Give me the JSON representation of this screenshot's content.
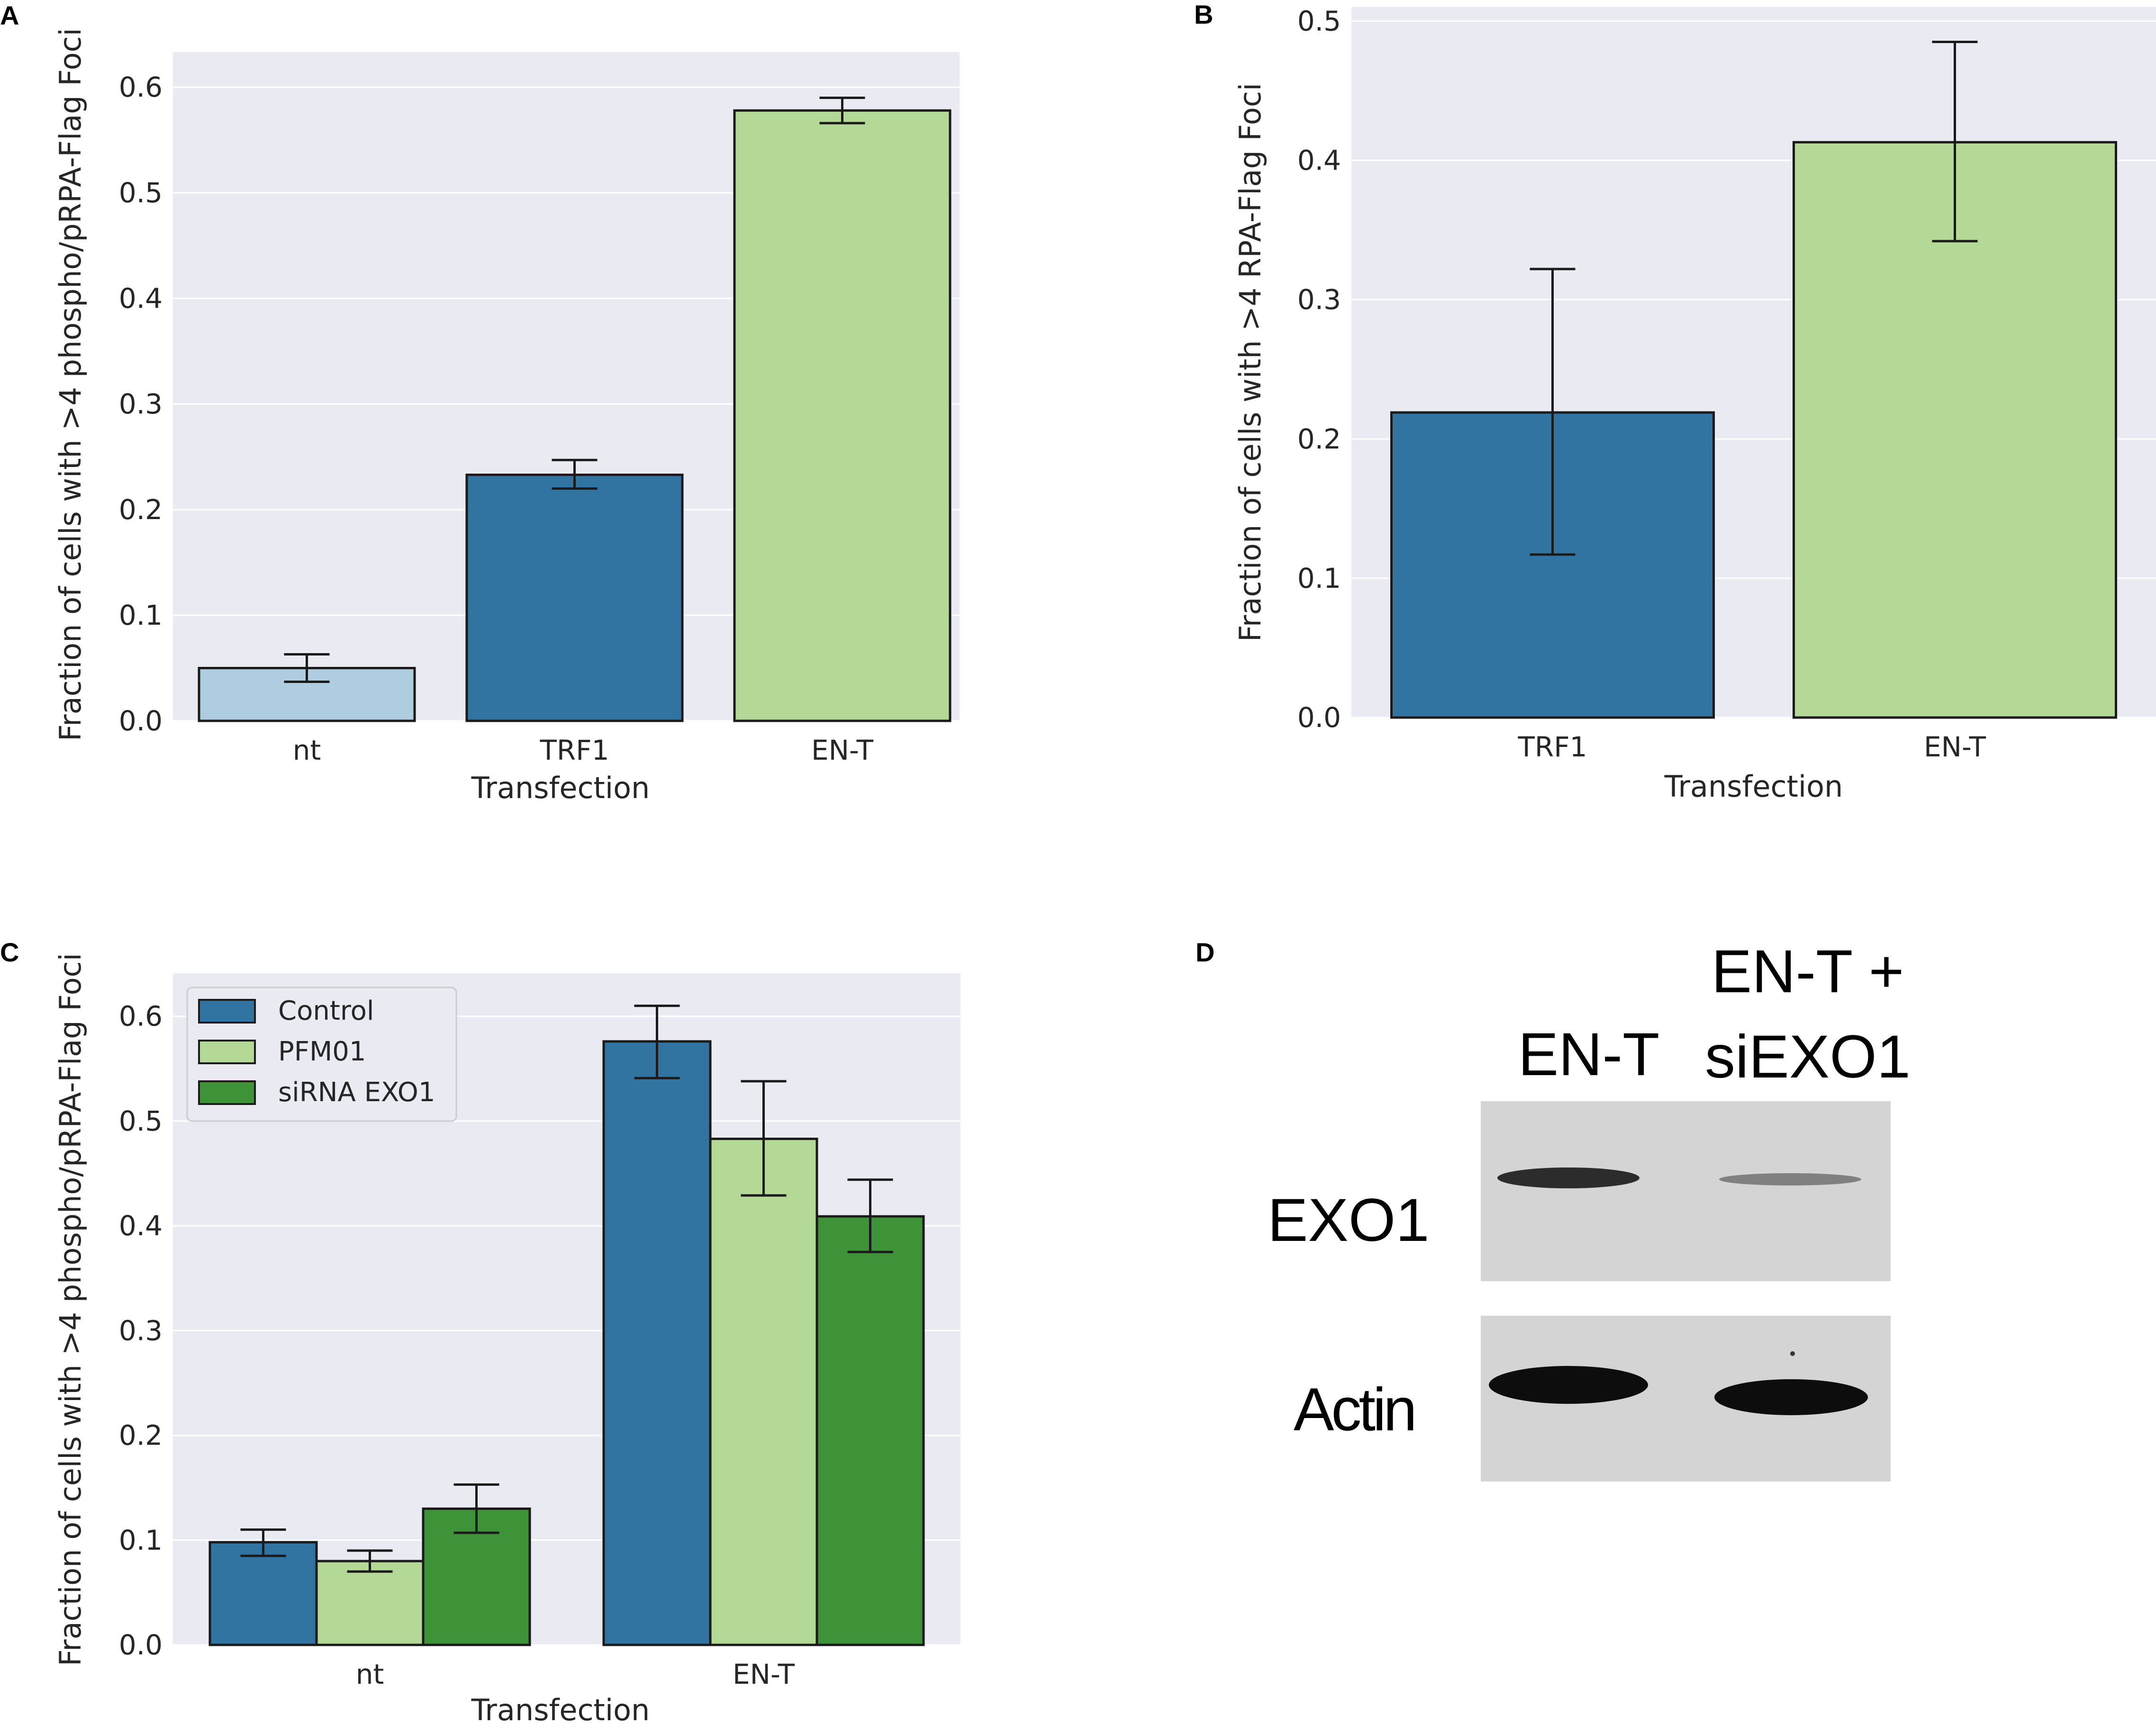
{
  "panels": {
    "a": {
      "letter": "A"
    },
    "b": {
      "letter": "B"
    },
    "c": {
      "letter": "C"
    },
    "d": {
      "letter": "D"
    }
  },
  "colors": {
    "light_blue": "#aecde0",
    "blue": "#3174a1",
    "light_green": "#b4d896",
    "green": "#3e9338",
    "plot_bg": "#eaeaf2",
    "grid": "#ffffff",
    "text": "#262626"
  },
  "chart_data": [
    {
      "id": "A",
      "type": "bar",
      "title": "",
      "xlabel": "Transfection",
      "ylabel": "Fraction of cells with >4 phospho/pRPA-Flag Foci",
      "categories": [
        "nt",
        "TRF1",
        "EN-T"
      ],
      "values": [
        0.05,
        0.233,
        0.578
      ],
      "errors": [
        [
          0.037,
          0.063
        ],
        [
          0.22,
          0.247
        ],
        [
          0.566,
          0.59
        ]
      ],
      "colors": [
        "#aecde0",
        "#3174a1",
        "#b4d896"
      ],
      "ylim": [
        0,
        0.6333
      ],
      "yticks": [
        "0.0",
        "0.1",
        "0.2",
        "0.3",
        "0.4",
        "0.5",
        "0.6"
      ],
      "grid": true
    },
    {
      "id": "B",
      "type": "bar",
      "title": "",
      "xlabel": "Transfection",
      "ylabel": "Fraction of cells with >4 RPA-Flag Foci",
      "categories": [
        "TRF1",
        "EN-T"
      ],
      "values": [
        0.219,
        0.413
      ],
      "errors": [
        [
          0.117,
          0.322
        ],
        [
          0.342,
          0.485
        ]
      ],
      "colors": [
        "#3174a1",
        "#b4d896"
      ],
      "ylim": [
        0,
        0.51
      ],
      "yticks": [
        "0.0",
        "0.1",
        "0.2",
        "0.3",
        "0.4",
        "0.5"
      ],
      "grid": true
    },
    {
      "id": "C",
      "type": "bar",
      "title": "",
      "xlabel": "Transfection",
      "ylabel": "Fraction of cells with >4 phospho/pRPA-Flag Foci",
      "categories": [
        "nt",
        "EN-T"
      ],
      "series": [
        {
          "name": "Control",
          "color": "#3174a1",
          "values": [
            0.098,
            0.576
          ],
          "errors": [
            [
              0.085,
              0.11
            ],
            [
              0.541,
              0.61
            ]
          ]
        },
        {
          "name": "PFM01",
          "color": "#b4d896",
          "values": [
            0.08,
            0.483
          ],
          "errors": [
            [
              0.07,
              0.09
            ],
            [
              0.429,
              0.538
            ]
          ]
        },
        {
          "name": "siRNA EXO1",
          "color": "#3e9338",
          "values": [
            0.13,
            0.409
          ],
          "errors": [
            [
              0.107,
              0.153
            ],
            [
              0.375,
              0.444
            ]
          ]
        }
      ],
      "legend": "top-left",
      "ylim": [
        0,
        0.641
      ],
      "yticks": [
        "0.0",
        "0.1",
        "0.2",
        "0.3",
        "0.4",
        "0.5",
        "0.6"
      ],
      "grid": true
    }
  ],
  "blot": {
    "lane_labels": [
      "EN-T",
      "EN-T +",
      "siEXO1"
    ],
    "row_labels": [
      "EXO1",
      "Actin"
    ]
  }
}
